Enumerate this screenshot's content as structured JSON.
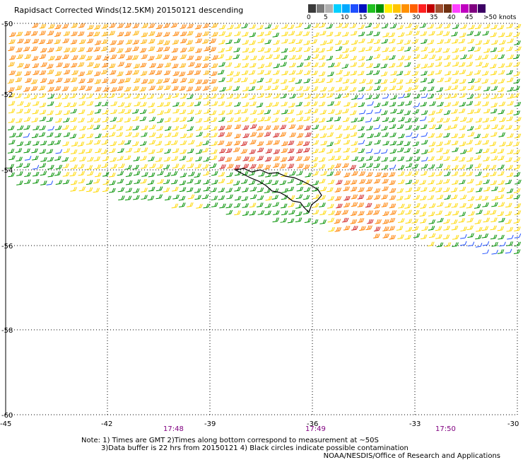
{
  "title": "Rapidsact Corrected Winds(12.5KM) 20150121 descending",
  "colorbar": {
    "colors": [
      "#3a3a3a",
      "#7a7a7a",
      "#b0b0b0",
      "#00d0ff",
      "#00a8ff",
      "#2050ff",
      "#0010c0",
      "#20c020",
      "#009000",
      "#ffee00",
      "#ffc400",
      "#ff9000",
      "#ff6000",
      "#ff2020",
      "#c00000",
      "#a05030",
      "#703010",
      "#ff40ff",
      "#c000c0",
      "#800080",
      "#3c0064"
    ],
    "labels": [
      "0",
      "5",
      "10",
      "15",
      "20",
      "25",
      "30",
      "35",
      "40",
      "45",
      ">50 knots"
    ]
  },
  "axes": {
    "lon_ticks": [
      "-45",
      "-42",
      "-39",
      "-36",
      "-33",
      "-30"
    ],
    "lat_ticks": [
      "-50",
      "-52",
      "-54",
      "-56",
      "-58",
      "-60"
    ],
    "time_labels": [
      "17:48",
      "17:49",
      "17:50"
    ]
  },
  "notes": {
    "line1": "Note: 1) Times are GMT 2)Times along bottom correspond to measurement at ~50S",
    "line2": "3)Data buffer is 22 hrs from 20150121 4) Black circles indicate possible contamination",
    "credit": "NOAA/NESDIS/Office of Research and Applications"
  },
  "map_data": {
    "type": "wind-barb-swath",
    "lon_range": [
      -45,
      -30
    ],
    "lat_range": [
      -60,
      -50
    ],
    "units": "knots",
    "wind_regions": [
      {
        "area": "northwest (-45 to -38, -50 to -52)",
        "speed_kt": 30
      },
      {
        "area": "northeast (-36 to -30, -50 to -52)",
        "speed_kt": 22
      },
      {
        "area": "center (-40 to -37, -53 to -54)",
        "speed_kt": 35
      },
      {
        "area": "west of swath edge (-45 to -43, -53 to -54.5)",
        "speed_kt": 17
      },
      {
        "area": "south-central (-40 to -37, -55 to -56)",
        "speed_kt": 17
      },
      {
        "area": "east of island (-35 to -34, -54 to -55)",
        "speed_kt": 35
      },
      {
        "area": "southeast (-32 to -30, -55.5 to -56.5)",
        "speed_kt": 17
      }
    ],
    "land": "South Georgia island near -37, -54.2"
  }
}
